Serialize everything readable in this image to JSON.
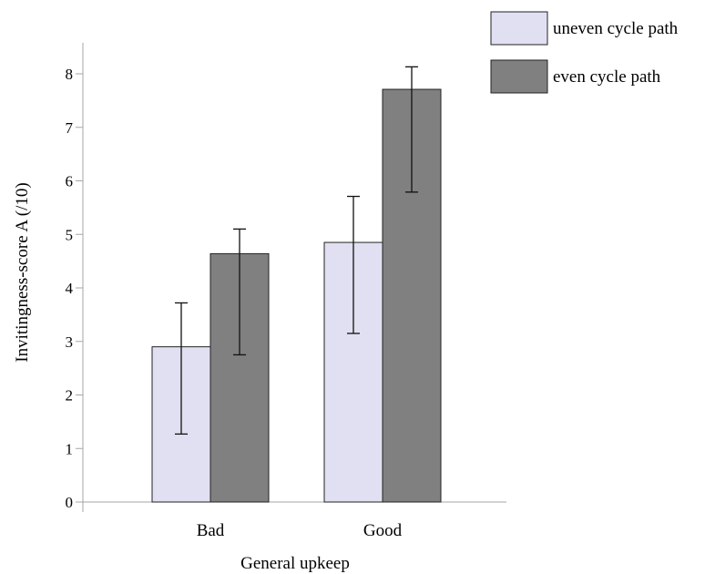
{
  "chart_data": {
    "type": "bar",
    "title": "",
    "xlabel": "General upkeep",
    "ylabel": "Invitingness-score A  (/10)",
    "categories": [
      "Bad",
      "Good"
    ],
    "yticks": [
      "0",
      "1",
      "2",
      "3",
      "4",
      "5",
      "6",
      "7",
      "8"
    ],
    "ylim": [
      0,
      8.6
    ],
    "grid": false,
    "legend_position": "top-right",
    "series": [
      {
        "name": "uneven cycle path",
        "color": "#e0e0f2",
        "values": [
          2.9,
          4.85
        ],
        "error_low": [
          1.27,
          3.15
        ],
        "error_high": [
          3.72,
          5.71
        ]
      },
      {
        "name": "even cycle path",
        "color": "#808080",
        "values": [
          4.64,
          7.71
        ],
        "error_low": [
          2.75,
          5.79
        ],
        "error_high": [
          5.1,
          8.13
        ]
      }
    ]
  }
}
